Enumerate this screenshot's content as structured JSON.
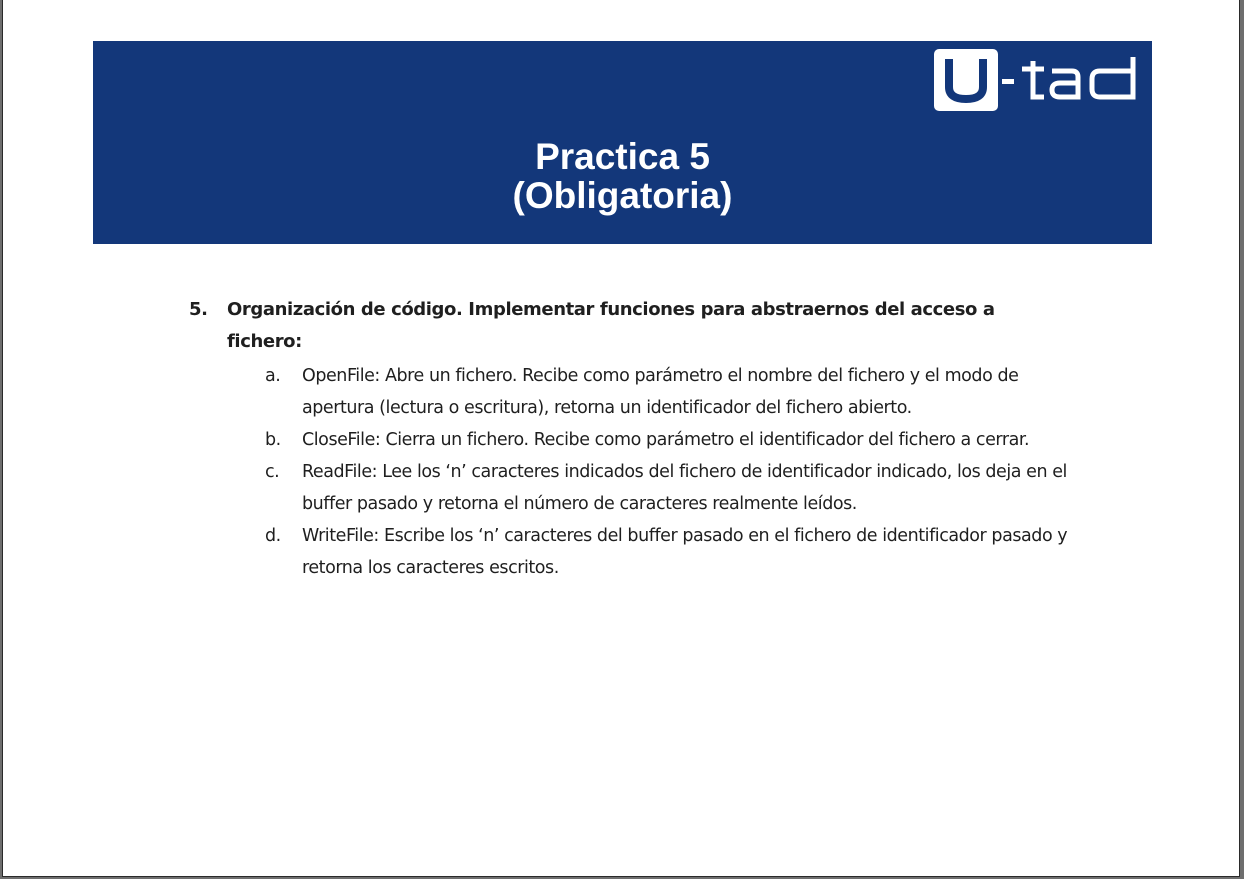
{
  "logo": {
    "text": "U-TAD",
    "icon": "u-tad-logo"
  },
  "banner": {
    "title_line1": "Practica 5",
    "title_line2": "(Obligatoria)"
  },
  "question": {
    "number": "5.",
    "text": "Organización de código. Implementar funciones para abstraernos del acceso a fichero:"
  },
  "items": [
    {
      "mark": "a.",
      "text": "OpenFile: Abre un fichero. Recibe como parámetro el nombre del fichero y el modo de apertura (lectura o escritura), retorna un identificador del fichero abierto."
    },
    {
      "mark": "b.",
      "text": "CloseFile: Cierra un fichero. Recibe como parámetro el identificador del fichero a cerrar."
    },
    {
      "mark": "c.",
      "text": "ReadFile: Lee los ‘n’ caracteres indicados del fichero de identificador indicado, los deja en el buffer pasado y retorna el número de caracteres realmente leídos."
    },
    {
      "mark": "d.",
      "text": "WriteFile: Escribe los ‘n’ caracteres del buffer pasado en el fichero de identificador pasado y retorna los caracteres escritos."
    }
  ],
  "colors": {
    "banner": "#13377a",
    "text": "#1f1f1f",
    "title": "#ffffff"
  }
}
